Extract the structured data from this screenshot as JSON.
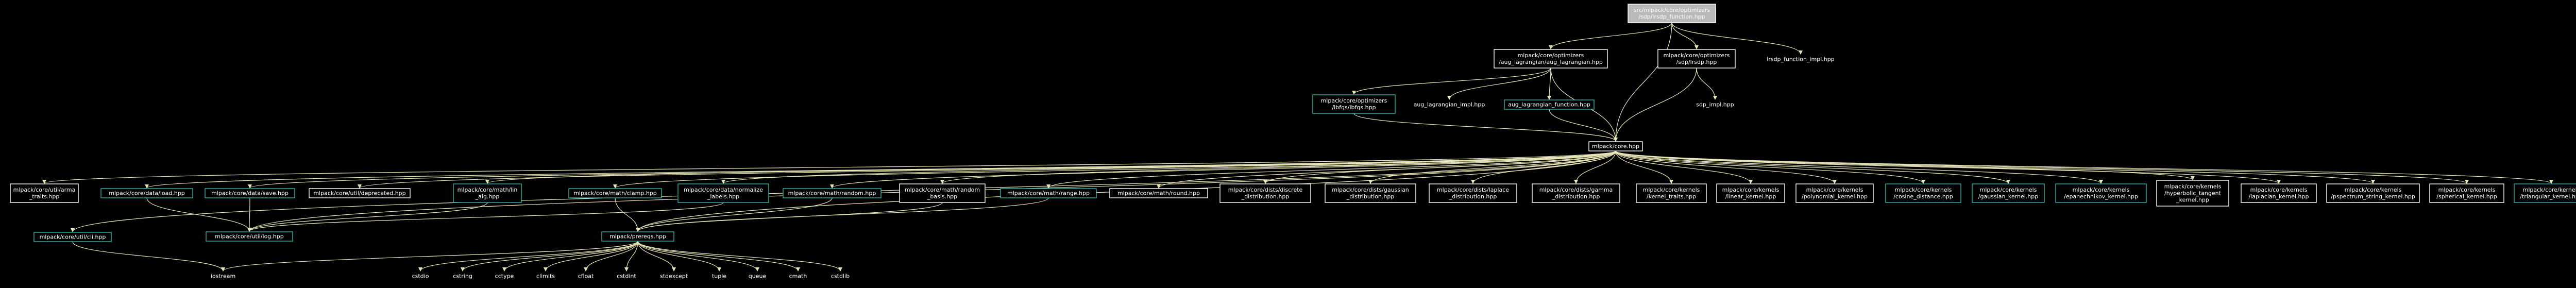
{
  "colors": {
    "background": "#000000",
    "edge": "#e8e6b8",
    "node_fill": "#000000",
    "node_border_default": "#ffffff",
    "node_border_linked": "#2bb3a7",
    "root_fill": "#b9b9b9",
    "root_text": "#000000",
    "text": "#ffffff"
  },
  "nodes": [
    {
      "id": "root",
      "lines": [
        "src/mlpack/core/optimizers",
        "/sdp/lrsdp_function.hpp"
      ],
      "kind": "root"
    },
    {
      "id": "auglag",
      "lines": [
        "mlpack/core/optimizers",
        "/aug_lagrangian/aug_lagrangian.hpp"
      ],
      "kind": "default"
    },
    {
      "id": "lrsdp",
      "lines": [
        "mlpack/core/optimizers",
        "/sdp/lrsdp.hpp"
      ],
      "kind": "default"
    },
    {
      "id": "lrsdp_impl",
      "lines": [
        "lrsdp_function_impl.hpp"
      ],
      "kind": "plain"
    },
    {
      "id": "lbfgs",
      "lines": [
        "mlpack/core/optimizers",
        "/lbfgs/lbfgs.hpp"
      ],
      "kind": "linked"
    },
    {
      "id": "auglag_impl",
      "lines": [
        "aug_lagrangian_impl.hpp"
      ],
      "kind": "plain"
    },
    {
      "id": "auglag_func",
      "lines": [
        "aug_lagrangian_function.hpp"
      ],
      "kind": "linked"
    },
    {
      "id": "sdp_impl",
      "lines": [
        "sdp_impl.hpp"
      ],
      "kind": "plain"
    },
    {
      "id": "core",
      "lines": [
        "mlpack/core.hpp"
      ],
      "kind": "default"
    },
    {
      "id": "arma_traits",
      "lines": [
        "mlpack/core/util/arma",
        "_traits.hpp"
      ],
      "kind": "default"
    },
    {
      "id": "load",
      "lines": [
        "mlpack/core/data/load.hpp"
      ],
      "kind": "linked"
    },
    {
      "id": "save",
      "lines": [
        "mlpack/core/data/save.hpp"
      ],
      "kind": "linked"
    },
    {
      "id": "deprecated",
      "lines": [
        "mlpack/core/util/deprecated.hpp"
      ],
      "kind": "default"
    },
    {
      "id": "lin_alg",
      "lines": [
        "mlpack/core/math/lin",
        "_alg.hpp"
      ],
      "kind": "linked"
    },
    {
      "id": "clamp",
      "lines": [
        "mlpack/core/math/clamp.hpp"
      ],
      "kind": "linked"
    },
    {
      "id": "normalize",
      "lines": [
        "mlpack/core/data/normalize",
        "_labels.hpp"
      ],
      "kind": "linked"
    },
    {
      "id": "random",
      "lines": [
        "mlpack/core/math/random.hpp"
      ],
      "kind": "linked"
    },
    {
      "id": "random_basis",
      "lines": [
        "mlpack/core/math/random",
        "_basis.hpp"
      ],
      "kind": "default"
    },
    {
      "id": "range",
      "lines": [
        "mlpack/core/math/range.hpp"
      ],
      "kind": "linked"
    },
    {
      "id": "round",
      "lines": [
        "mlpack/core/math/round.hpp"
      ],
      "kind": "default"
    },
    {
      "id": "discrete",
      "lines": [
        "mlpack/core/dists/discrete",
        "_distribution.hpp"
      ],
      "kind": "default"
    },
    {
      "id": "gaussian",
      "lines": [
        "mlpack/core/dists/gaussian",
        "_distribution.hpp"
      ],
      "kind": "default"
    },
    {
      "id": "laplace",
      "lines": [
        "mlpack/core/dists/laplace",
        "_distribution.hpp"
      ],
      "kind": "default"
    },
    {
      "id": "gamma",
      "lines": [
        "mlpack/core/dists/gamma",
        "_distribution.hpp"
      ],
      "kind": "default"
    },
    {
      "id": "kernel_traits",
      "lines": [
        "mlpack/core/kernels",
        "/kernel_traits.hpp"
      ],
      "kind": "default"
    },
    {
      "id": "linear_kernel",
      "lines": [
        "mlpack/core/kernels",
        "/linear_kernel.hpp"
      ],
      "kind": "default"
    },
    {
      "id": "poly_kernel",
      "lines": [
        "mlpack/core/kernels",
        "/polynomial_kernel.hpp"
      ],
      "kind": "default"
    },
    {
      "id": "cosine",
      "lines": [
        "mlpack/core/kernels",
        "/cosine_distance.hpp"
      ],
      "kind": "linked"
    },
    {
      "id": "gauss_kernel",
      "lines": [
        "mlpack/core/kernels",
        "/gaussian_kernel.hpp"
      ],
      "kind": "linked"
    },
    {
      "id": "epan",
      "lines": [
        "mlpack/core/kernels",
        "/epanechnikov_kernel.hpp"
      ],
      "kind": "linked"
    },
    {
      "id": "hyper",
      "lines": [
        "mlpack/core/kernels",
        "/hyperbolic_tangent",
        "_kernel.hpp"
      ],
      "kind": "default"
    },
    {
      "id": "lap_kernel",
      "lines": [
        "mlpack/core/kernels",
        "/laplacian_kernel.hpp"
      ],
      "kind": "default"
    },
    {
      "id": "pspec",
      "lines": [
        "mlpack/core/kernels",
        "/pspectrum_string_kernel.hpp"
      ],
      "kind": "default"
    },
    {
      "id": "spherical",
      "lines": [
        "mlpack/core/kernels",
        "/spherical_kernel.hpp"
      ],
      "kind": "default"
    },
    {
      "id": "triangular",
      "lines": [
        "mlpack/core/kernels",
        "/triangular_kernel.hpp"
      ],
      "kind": "linked"
    },
    {
      "id": "cli",
      "lines": [
        "mlpack/core/util/cli.hpp"
      ],
      "kind": "linked"
    },
    {
      "id": "log",
      "lines": [
        "mlpack/core/util/log.hpp"
      ],
      "kind": "linked"
    },
    {
      "id": "prereqs",
      "lines": [
        "mlpack/prereqs.hpp"
      ],
      "kind": "linked"
    },
    {
      "id": "iostream",
      "lines": [
        "iostream"
      ],
      "kind": "plain"
    },
    {
      "id": "cstdio",
      "lines": [
        "cstdio"
      ],
      "kind": "plain"
    },
    {
      "id": "cstring",
      "lines": [
        "cstring"
      ],
      "kind": "plain"
    },
    {
      "id": "cctype",
      "lines": [
        "cctype"
      ],
      "kind": "plain"
    },
    {
      "id": "climits",
      "lines": [
        "climits"
      ],
      "kind": "plain"
    },
    {
      "id": "cfloat",
      "lines": [
        "cfloat"
      ],
      "kind": "plain"
    },
    {
      "id": "cstdint",
      "lines": [
        "cstdint"
      ],
      "kind": "plain"
    },
    {
      "id": "stdexcept",
      "lines": [
        "stdexcept"
      ],
      "kind": "plain"
    },
    {
      "id": "tuple",
      "lines": [
        "tuple"
      ],
      "kind": "plain"
    },
    {
      "id": "queue",
      "lines": [
        "queue"
      ],
      "kind": "plain"
    },
    {
      "id": "cmath",
      "lines": [
        "cmath"
      ],
      "kind": "plain"
    },
    {
      "id": "cstdlib",
      "lines": [
        "cstdlib"
      ],
      "kind": "plain"
    }
  ],
  "edges": [
    [
      "root",
      "auglag"
    ],
    [
      "root",
      "lrsdp"
    ],
    [
      "root",
      "lrsdp_impl"
    ],
    [
      "root",
      "core"
    ],
    [
      "auglag",
      "lbfgs"
    ],
    [
      "auglag",
      "auglag_impl"
    ],
    [
      "auglag",
      "auglag_func"
    ],
    [
      "auglag",
      "core"
    ],
    [
      "lrsdp",
      "sdp_impl"
    ],
    [
      "lrsdp",
      "core"
    ],
    [
      "lbfgs",
      "core"
    ],
    [
      "auglag_func",
      "core"
    ],
    [
      "core",
      "arma_traits"
    ],
    [
      "core",
      "load"
    ],
    [
      "core",
      "save"
    ],
    [
      "core",
      "deprecated"
    ],
    [
      "core",
      "lin_alg"
    ],
    [
      "core",
      "clamp"
    ],
    [
      "core",
      "normalize"
    ],
    [
      "core",
      "random"
    ],
    [
      "core",
      "random_basis"
    ],
    [
      "core",
      "range"
    ],
    [
      "core",
      "round"
    ],
    [
      "core",
      "discrete"
    ],
    [
      "core",
      "gaussian"
    ],
    [
      "core",
      "laplace"
    ],
    [
      "core",
      "gamma"
    ],
    [
      "core",
      "kernel_traits"
    ],
    [
      "core",
      "linear_kernel"
    ],
    [
      "core",
      "poly_kernel"
    ],
    [
      "core",
      "cosine"
    ],
    [
      "core",
      "gauss_kernel"
    ],
    [
      "core",
      "epan"
    ],
    [
      "core",
      "hyper"
    ],
    [
      "core",
      "lap_kernel"
    ],
    [
      "core",
      "pspec"
    ],
    [
      "core",
      "spherical"
    ],
    [
      "core",
      "triangular"
    ],
    [
      "core",
      "cli"
    ],
    [
      "core",
      "log"
    ],
    [
      "core",
      "prereqs"
    ],
    [
      "load",
      "log"
    ],
    [
      "save",
      "log"
    ],
    [
      "lin_alg",
      "log"
    ],
    [
      "normalize",
      "log"
    ],
    [
      "cli",
      "iostream"
    ],
    [
      "clamp",
      "prereqs"
    ],
    [
      "random",
      "prereqs"
    ],
    [
      "range",
      "prereqs"
    ],
    [
      "random_basis",
      "prereqs"
    ],
    [
      "prereqs",
      "iostream"
    ],
    [
      "prereqs",
      "cstdio"
    ],
    [
      "prereqs",
      "cstring"
    ],
    [
      "prereqs",
      "cctype"
    ],
    [
      "prereqs",
      "climits"
    ],
    [
      "prereqs",
      "cfloat"
    ],
    [
      "prereqs",
      "cstdint"
    ],
    [
      "prereqs",
      "stdexcept"
    ],
    [
      "prereqs",
      "tuple"
    ],
    [
      "prereqs",
      "queue"
    ],
    [
      "prereqs",
      "cmath"
    ],
    [
      "prereqs",
      "cstdlib"
    ]
  ]
}
